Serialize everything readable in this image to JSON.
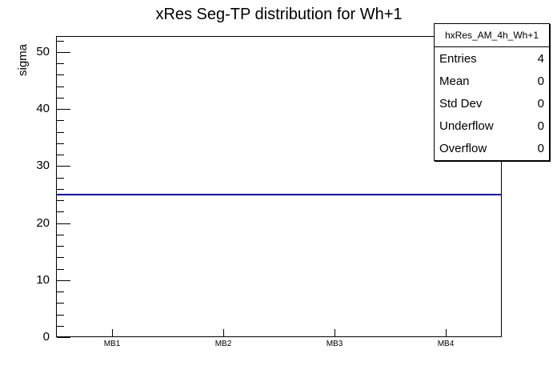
{
  "chart_data": {
    "type": "line",
    "title": "xRes Seg-TP distribution for Wh+1",
    "xlabel": "",
    "ylabel": "sigma",
    "categories": [
      "MB1",
      "MB2",
      "MB3",
      "MB4"
    ],
    "series": [
      {
        "name": "hxRes_AM_4h_Wh+1",
        "values": [
          25,
          25,
          25,
          25
        ]
      }
    ],
    "ylim": [
      0,
      52.8
    ],
    "y_major_step": 10,
    "y_minor_step": 2,
    "grid": false,
    "legend_position": "none",
    "line_color": "#000099"
  },
  "stats_box": {
    "header": "hxRes_AM_4h_Wh+1",
    "rows": [
      {
        "label": "Entries",
        "value": "4"
      },
      {
        "label": "Mean",
        "value": "0"
      },
      {
        "label": "Std Dev",
        "value": "0"
      },
      {
        "label": "Underflow",
        "value": "0"
      },
      {
        "label": "Overflow",
        "value": "0"
      }
    ]
  },
  "colors": {
    "background": "#ffffff",
    "axis": "#000000",
    "histogram_line": "#000099"
  }
}
